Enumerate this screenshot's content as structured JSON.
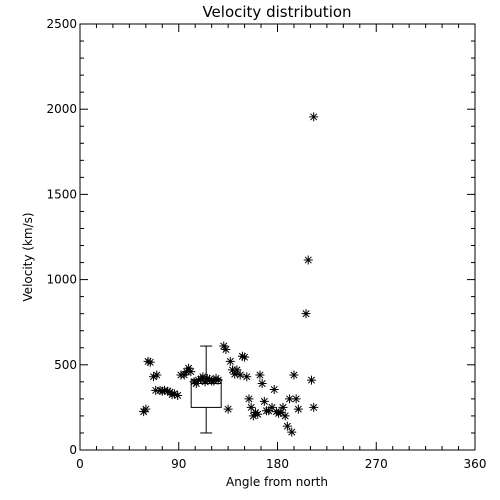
{
  "chart_data": {
    "type": "scatter",
    "title": "Velocity distribution",
    "xlabel": "Angle from north",
    "ylabel": "Velocity (km/s)",
    "xlim": [
      0,
      360
    ],
    "ylim": [
      0,
      2500
    ],
    "xticks": [
      0,
      90,
      180,
      270,
      360
    ],
    "yticks": [
      0,
      500,
      1000,
      1500,
      2000,
      2500
    ],
    "grid": false,
    "marker": "asterisk",
    "color": "#000000",
    "points": [
      [
        58,
        225
      ],
      [
        60,
        240
      ],
      [
        62,
        520
      ],
      [
        64,
        515
      ],
      [
        67,
        430
      ],
      [
        69,
        350
      ],
      [
        70,
        440
      ],
      [
        73,
        350
      ],
      [
        75,
        345
      ],
      [
        77,
        350
      ],
      [
        80,
        345
      ],
      [
        82,
        340
      ],
      [
        84,
        325
      ],
      [
        86,
        330
      ],
      [
        89,
        320
      ],
      [
        92,
        440
      ],
      [
        95,
        440
      ],
      [
        97,
        460
      ],
      [
        99,
        480
      ],
      [
        101,
        460
      ],
      [
        104,
        400
      ],
      [
        106,
        390
      ],
      [
        108,
        410
      ],
      [
        110,
        415
      ],
      [
        112,
        430
      ],
      [
        114,
        400
      ],
      [
        116,
        420
      ],
      [
        118,
        415
      ],
      [
        120,
        405
      ],
      [
        122,
        405
      ],
      [
        124,
        420
      ],
      [
        126,
        410
      ],
      [
        131,
        610
      ],
      [
        133,
        590
      ],
      [
        135,
        240
      ],
      [
        137,
        520
      ],
      [
        139,
        470
      ],
      [
        141,
        445
      ],
      [
        143,
        470
      ],
      [
        146,
        440
      ],
      [
        148,
        550
      ],
      [
        150,
        545
      ],
      [
        152,
        430
      ],
      [
        154,
        300
      ],
      [
        156,
        250
      ],
      [
        158,
        200
      ],
      [
        160,
        220
      ],
      [
        162,
        210
      ],
      [
        164,
        440
      ],
      [
        166,
        390
      ],
      [
        168,
        285
      ],
      [
        170,
        230
      ],
      [
        172,
        230
      ],
      [
        175,
        250
      ],
      [
        177,
        355
      ],
      [
        179,
        225
      ],
      [
        181,
        215
      ],
      [
        183,
        220
      ],
      [
        185,
        250
      ],
      [
        187,
        200
      ],
      [
        189,
        140
      ],
      [
        191,
        300
      ],
      [
        193,
        105
      ],
      [
        195,
        440
      ],
      [
        197,
        300
      ],
      [
        199,
        240
      ],
      [
        208,
        1115
      ],
      [
        206,
        800
      ],
      [
        213,
        1955
      ],
      [
        211,
        410
      ],
      [
        213,
        250
      ]
    ],
    "boxplot": {
      "x": 115,
      "min": 100,
      "q1": 250,
      "median": 390,
      "q3": 415,
      "max": 610
    }
  }
}
